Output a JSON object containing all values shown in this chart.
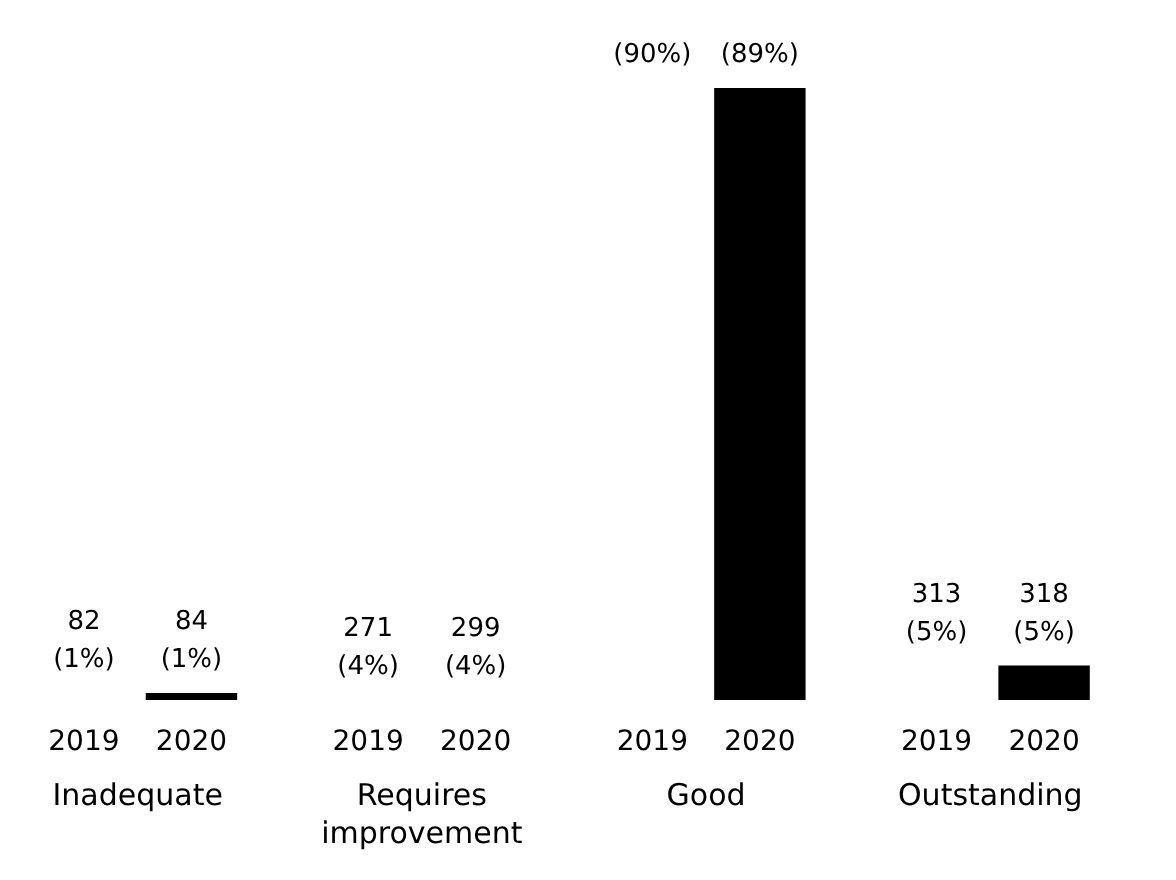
{
  "chart_data": {
    "type": "bar",
    "categories": [
      "Inadequate",
      "Requires improvement",
      "Good",
      "Outstanding"
    ],
    "series": [
      {
        "name": "2019",
        "values": [
          null,
          null,
          null,
          null
        ],
        "value_labels": [
          "82\n(1%)",
          "271\n(4%)",
          "(90%)",
          "313\n(5%)"
        ]
      },
      {
        "name": "2020",
        "color": "#000000",
        "values": [
          1,
          null,
          89,
          5
        ],
        "value_labels": [
          "84\n(1%)",
          "299\n(4%)",
          "(89%)",
          "318\n(5%)"
        ]
      }
    ],
    "ylim": [
      0,
      89
    ],
    "tick_labels": "x",
    "legend": false
  }
}
